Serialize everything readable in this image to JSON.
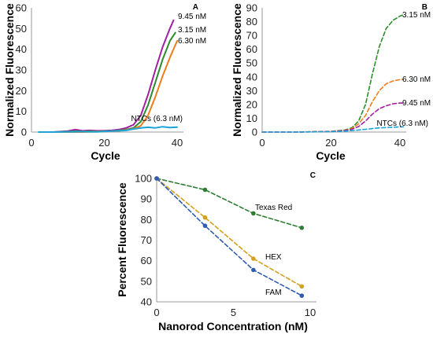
{
  "chart_data": [
    {
      "panel": "A",
      "type": "line",
      "xlabel": "Cycle",
      "ylabel": "Normalized Fluorescence",
      "xlim": [
        0,
        40
      ],
      "ylim": [
        0,
        60
      ],
      "xticks": [
        0,
        20,
        40
      ],
      "yticks": [
        0,
        10,
        20,
        30,
        40,
        50,
        60
      ],
      "line_style": "solid",
      "grid": false,
      "series": [
        {
          "name": "9.45 nM",
          "color": "#a21fa3",
          "x": [
            2,
            6,
            10,
            12,
            14,
            16,
            18,
            20,
            22,
            24,
            26,
            28,
            30,
            32,
            34,
            36,
            38,
            39
          ],
          "y": [
            0,
            0,
            0.5,
            1.2,
            0.6,
            0.8,
            0.6,
            0.7,
            0.8,
            1.2,
            2,
            3.5,
            8,
            18,
            30,
            41,
            50,
            54
          ]
        },
        {
          "name": "3.15 nM",
          "color": "#2e8b2e",
          "x": [
            2,
            6,
            10,
            12,
            14,
            16,
            18,
            20,
            22,
            24,
            26,
            28,
            30,
            32,
            34,
            36,
            38,
            39.5
          ],
          "y": [
            0,
            0,
            0.2,
            0.4,
            0.3,
            0.4,
            0.3,
            0.4,
            0.5,
            0.8,
            1.2,
            2,
            5,
            13,
            24,
            35,
            44,
            48
          ]
        },
        {
          "name": "6.30 nM",
          "color": "#f07c1c",
          "x": [
            2,
            6,
            10,
            14,
            18,
            20,
            22,
            24,
            26,
            28,
            30,
            32,
            34,
            36,
            38,
            40
          ],
          "y": [
            0,
            0,
            0,
            0,
            0.2,
            0.3,
            0.4,
            0.6,
            1,
            1.6,
            3,
            8,
            17,
            27,
            36,
            44
          ]
        },
        {
          "name": "NTCs (6.3 nM)",
          "color": "#1ba3d8",
          "x": [
            2,
            6,
            10,
            14,
            18,
            22,
            26,
            28,
            30,
            32,
            34,
            36,
            38,
            40
          ],
          "y": [
            0,
            0,
            0.1,
            0.2,
            0.1,
            0.5,
            0.8,
            1.5,
            2,
            2.3,
            2,
            2.6,
            2.2,
            2.4
          ]
        }
      ]
    },
    {
      "panel": "B",
      "type": "line",
      "xlabel": "Cycle",
      "ylabel": "Normalized Fluorescence",
      "xlim": [
        0,
        40
      ],
      "ylim": [
        0,
        90
      ],
      "xticks": [
        0,
        20,
        40
      ],
      "yticks": [
        0,
        10,
        20,
        30,
        40,
        50,
        60,
        70,
        80,
        90
      ],
      "line_style": "dashed",
      "grid": false,
      "series": [
        {
          "name": "3.15 nM",
          "color": "#2e8b2e",
          "x": [
            0,
            10,
            20,
            24,
            26,
            28,
            30,
            32,
            34,
            36,
            38,
            40,
            41
          ],
          "y": [
            0,
            0,
            0.5,
            1.5,
            3,
            8,
            20,
            42,
            62,
            75,
            81,
            84,
            85
          ]
        },
        {
          "name": "6.30 nM",
          "color": "#f07c1c",
          "x": [
            0,
            10,
            20,
            24,
            26,
            28,
            30,
            32,
            34,
            36,
            38,
            40,
            41
          ],
          "y": [
            0,
            0,
            0.5,
            1.2,
            2.5,
            6,
            12,
            22,
            30,
            35,
            37,
            38,
            38
          ]
        },
        {
          "name": "9.45 nM",
          "color": "#a21fa3",
          "x": [
            0,
            10,
            20,
            24,
            26,
            28,
            30,
            32,
            34,
            36,
            38,
            40,
            41
          ],
          "y": [
            0,
            0,
            0.4,
            1,
            2,
            4,
            8,
            13,
            17,
            19,
            20.5,
            21,
            21
          ]
        },
        {
          "name": "NTCs (6.3 nM)",
          "color": "#1ba3d8",
          "x": [
            0,
            10,
            20,
            24,
            26,
            28,
            30,
            32,
            34,
            36,
            38,
            40,
            41
          ],
          "y": [
            0,
            0,
            0.3,
            0.6,
            1,
            1.5,
            2,
            2.5,
            3,
            3.3,
            3.5,
            3.7,
            3.8
          ]
        }
      ]
    },
    {
      "panel": "C",
      "type": "line",
      "xlabel": "Nanorod Concentration (nM)",
      "ylabel": "Percent Fluorescence",
      "xlim": [
        0,
        10
      ],
      "ylim": [
        40,
        100
      ],
      "xticks": [
        0,
        5,
        10
      ],
      "yticks": [
        40,
        50,
        60,
        70,
        80,
        90,
        100
      ],
      "line_style": "dashed",
      "grid": false,
      "series": [
        {
          "name": "Texas Red",
          "color": "#2e7d32",
          "x": [
            0,
            3.15,
            6.3,
            9.45
          ],
          "y": [
            100,
            94.5,
            83,
            76
          ]
        },
        {
          "name": "HEX",
          "color": "#d4a020",
          "x": [
            0,
            3.15,
            6.3,
            9.45
          ],
          "y": [
            100,
            81,
            61,
            47.5
          ]
        },
        {
          "name": "FAM",
          "color": "#2f5bb0",
          "x": [
            0,
            3.15,
            6.3,
            9.45
          ],
          "y": [
            100,
            77,
            55.5,
            43
          ]
        }
      ]
    }
  ]
}
